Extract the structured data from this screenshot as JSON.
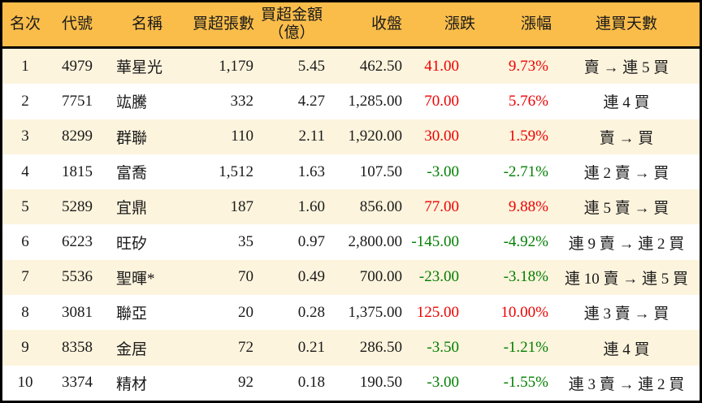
{
  "colors": {
    "header_bg": "#FABD4A",
    "row_odd_bg": "#FDF4DD",
    "row_even_bg": "#FFFFFF",
    "up": "#EE0000",
    "down": "#007E00",
    "border": "#000000",
    "text": "#1A1A1A"
  },
  "chart_data": {
    "type": "table",
    "columns": [
      "名次",
      "代號",
      "名稱",
      "買超張數",
      "買超金額\n（億）",
      "收盤",
      "漲跌",
      "漲幅",
      "連買天數"
    ],
    "rows": [
      {
        "rank": "1",
        "code": "4979",
        "name": "華星光",
        "buy_volume": "1,179",
        "buy_amount": "5.45",
        "close": "462.50",
        "change": "41.00",
        "change_pct": "9.73%",
        "streak": "賣 → 連 5 買",
        "trend": "up"
      },
      {
        "rank": "2",
        "code": "7751",
        "name": "竑騰",
        "buy_volume": "332",
        "buy_amount": "4.27",
        "close": "1,285.00",
        "change": "70.00",
        "change_pct": "5.76%",
        "streak": "連 4 買",
        "trend": "up"
      },
      {
        "rank": "3",
        "code": "8299",
        "name": "群聯",
        "buy_volume": "110",
        "buy_amount": "2.11",
        "close": "1,920.00",
        "change": "30.00",
        "change_pct": "1.59%",
        "streak": "賣 → 買",
        "trend": "up"
      },
      {
        "rank": "4",
        "code": "1815",
        "name": "富喬",
        "buy_volume": "1,512",
        "buy_amount": "1.63",
        "close": "107.50",
        "change": "-3.00",
        "change_pct": "-2.71%",
        "streak": "連 2 賣 → 買",
        "trend": "down"
      },
      {
        "rank": "5",
        "code": "5289",
        "name": "宜鼎",
        "buy_volume": "187",
        "buy_amount": "1.60",
        "close": "856.00",
        "change": "77.00",
        "change_pct": "9.88%",
        "streak": "連 5 賣 → 買",
        "trend": "up"
      },
      {
        "rank": "6",
        "code": "6223",
        "name": "旺矽",
        "buy_volume": "35",
        "buy_amount": "0.97",
        "close": "2,800.00",
        "change": "-145.00",
        "change_pct": "-4.92%",
        "streak": "連 9 賣 → 連 2 買",
        "trend": "down"
      },
      {
        "rank": "7",
        "code": "5536",
        "name": "聖暉*",
        "buy_volume": "70",
        "buy_amount": "0.49",
        "close": "700.00",
        "change": "-23.00",
        "change_pct": "-3.18%",
        "streak": "連 10 賣 → 連 5 買",
        "trend": "down"
      },
      {
        "rank": "8",
        "code": "3081",
        "name": "聯亞",
        "buy_volume": "20",
        "buy_amount": "0.28",
        "close": "1,375.00",
        "change": "125.00",
        "change_pct": "10.00%",
        "streak": "連 3 賣 → 買",
        "trend": "up"
      },
      {
        "rank": "9",
        "code": "8358",
        "name": "金居",
        "buy_volume": "72",
        "buy_amount": "0.21",
        "close": "286.50",
        "change": "-3.50",
        "change_pct": "-1.21%",
        "streak": "連 4 買",
        "trend": "down"
      },
      {
        "rank": "10",
        "code": "3374",
        "name": "精材",
        "buy_volume": "92",
        "buy_amount": "0.18",
        "close": "190.50",
        "change": "-3.00",
        "change_pct": "-1.55%",
        "streak": "連 3 賣 → 連 2 買",
        "trend": "down"
      }
    ]
  }
}
